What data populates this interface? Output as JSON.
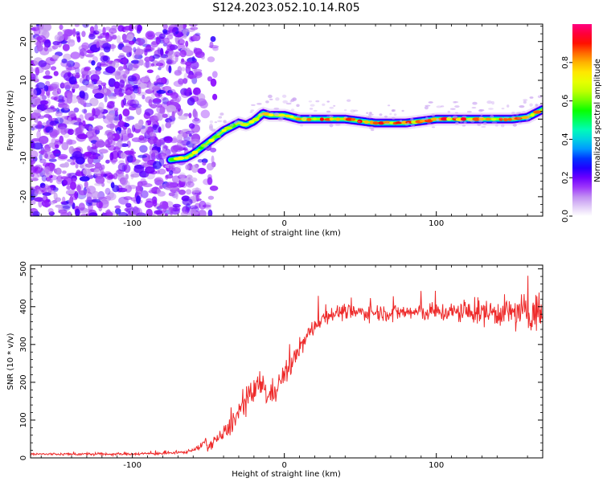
{
  "title": "S124.2023.052.10.14.R05",
  "chart_data": [
    {
      "type": "heatmap",
      "xlabel": "Height of straight line (km)",
      "ylabel": "Frequency (Hz)",
      "xlim": [
        -167,
        170
      ],
      "ylim": [
        -25,
        24.5
      ],
      "xticks": [
        -100,
        0,
        100
      ],
      "yticks": [
        -20,
        -10,
        0,
        10,
        20
      ],
      "colorbar": {
        "label": "Normalized spectral amplitude",
        "range": [
          0,
          1
        ],
        "ticks": [
          0.0,
          0.2,
          0.4,
          0.6,
          0.8
        ],
        "colors": [
          "#ffffff",
          "#c8a0f0",
          "#8800ff",
          "#0000ff",
          "#00b4ff",
          "#00ffb4",
          "#00ff00",
          "#b4ff00",
          "#ffff00",
          "#ffa000",
          "#ff0000",
          "#ff0080"
        ]
      },
      "noise_region_x": [
        -167,
        -57
      ],
      "ridge": {
        "x": [
          -75,
          -70,
          -65,
          -60,
          -55,
          -50,
          -45,
          -40,
          -35,
          -30,
          -25,
          -20,
          -17,
          -14,
          -10,
          -5,
          0,
          10,
          20,
          30,
          40,
          50,
          60,
          70,
          80,
          90,
          100,
          110,
          120,
          130,
          140,
          150,
          160,
          165,
          170
        ],
        "y": [
          -10.5,
          -10.2,
          -10,
          -9,
          -7.5,
          -6,
          -4.5,
          -3,
          -2,
          -1,
          -1.5,
          -0.5,
          0.5,
          1.5,
          1,
          1,
          1,
          0,
          0,
          0,
          0,
          -0.5,
          -1,
          -1,
          -1,
          -0.5,
          0,
          0,
          0,
          0,
          0,
          0,
          0.5,
          1.5,
          2.5
        ]
      }
    },
    {
      "type": "line",
      "xlabel": "Height of straight line (km)",
      "ylabel": "SNR (10 * v/v)",
      "xlim": [
        -167,
        170
      ],
      "ylim": [
        0,
        510
      ],
      "xticks": [
        -100,
        0,
        100
      ],
      "yticks": [
        0,
        100,
        200,
        300,
        400,
        500
      ],
      "color": "#ee2a2a",
      "series": [
        {
          "x": [
            -167,
            -140,
            -110,
            -80,
            -65,
            -58,
            -55,
            -52,
            -50,
            -48,
            -45,
            -40,
            -35,
            -30,
            -25,
            -20,
            -15,
            -10,
            -5,
            0,
            5,
            10,
            15,
            20,
            25,
            30,
            35,
            40,
            50,
            60,
            70,
            80,
            90,
            100,
            110,
            120,
            130,
            140,
            150,
            160,
            170
          ],
          "values": [
            10,
            10,
            10,
            12,
            15,
            25,
            30,
            45,
            25,
            40,
            50,
            60,
            90,
            120,
            150,
            170,
            200,
            160,
            190,
            220,
            250,
            290,
            320,
            350,
            370,
            380,
            385,
            385,
            385,
            385,
            385,
            385,
            385,
            385,
            385,
            385,
            385,
            385,
            385,
            385,
            385
          ]
        }
      ],
      "noise_amplitude": [
        {
          "x": -167,
          "amp": 4
        },
        {
          "x": -60,
          "amp": 5
        },
        {
          "x": -40,
          "amp": 25
        },
        {
          "x": -20,
          "amp": 50
        },
        {
          "x": 0,
          "amp": 35
        },
        {
          "x": 30,
          "amp": 25
        },
        {
          "x": 100,
          "amp": 30
        },
        {
          "x": 150,
          "amp": 50
        },
        {
          "x": 170,
          "amp": 70
        }
      ]
    }
  ]
}
